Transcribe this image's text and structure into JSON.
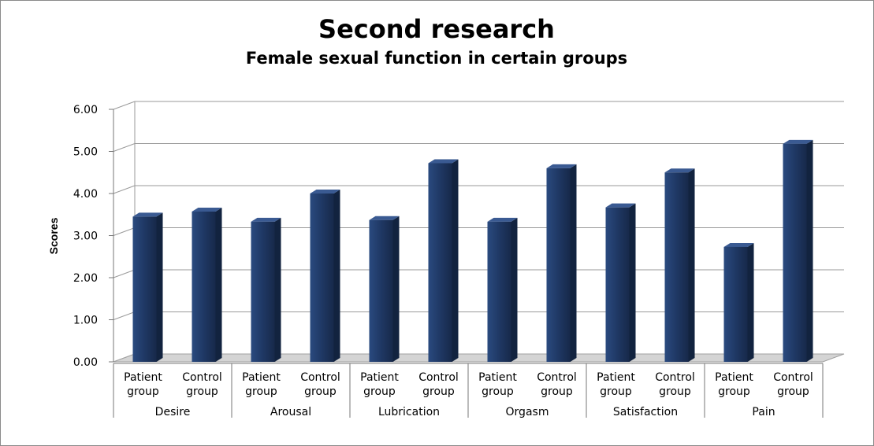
{
  "chart_data": {
    "type": "bar",
    "title": "Second research",
    "subtitle": "Female sexual function in certain groups",
    "ylabel": "Scores",
    "ylim": [
      0,
      6
    ],
    "yticks": [
      "0.00",
      "1.00",
      "2.00",
      "3.00",
      "4.00",
      "5.00",
      "6.00"
    ],
    "grid": true,
    "legend": "none",
    "bar_color": "#1f3864",
    "groups": [
      {
        "label": "Desire",
        "categories": [
          {
            "line1": "Patient",
            "line2": "group",
            "value": 3.45
          },
          {
            "line1": "Control",
            "line2": "group",
            "value": 3.57
          }
        ]
      },
      {
        "label": "Arousal",
        "categories": [
          {
            "line1": "Patient",
            "line2": "group",
            "value": 3.33
          },
          {
            "line1": "Control",
            "line2": "group",
            "value": 4.0
          }
        ]
      },
      {
        "label": "Lubrication",
        "categories": [
          {
            "line1": "Patient",
            "line2": "group",
            "value": 3.37
          },
          {
            "line1": "Control",
            "line2": "group",
            "value": 4.72
          }
        ]
      },
      {
        "label": "Orgasm",
        "categories": [
          {
            "line1": "Patient",
            "line2": "group",
            "value": 3.33
          },
          {
            "line1": "Control",
            "line2": "group",
            "value": 4.6
          }
        ]
      },
      {
        "label": "Satisfaction",
        "categories": [
          {
            "line1": "Patient",
            "line2": "group",
            "value": 3.67
          },
          {
            "line1": "Control",
            "line2": "group",
            "value": 4.5
          }
        ]
      },
      {
        "label": "Pain",
        "categories": [
          {
            "line1": "Patient",
            "line2": "group",
            "value": 2.73
          },
          {
            "line1": "Control",
            "line2": "group",
            "value": 5.18
          }
        ]
      }
    ]
  }
}
